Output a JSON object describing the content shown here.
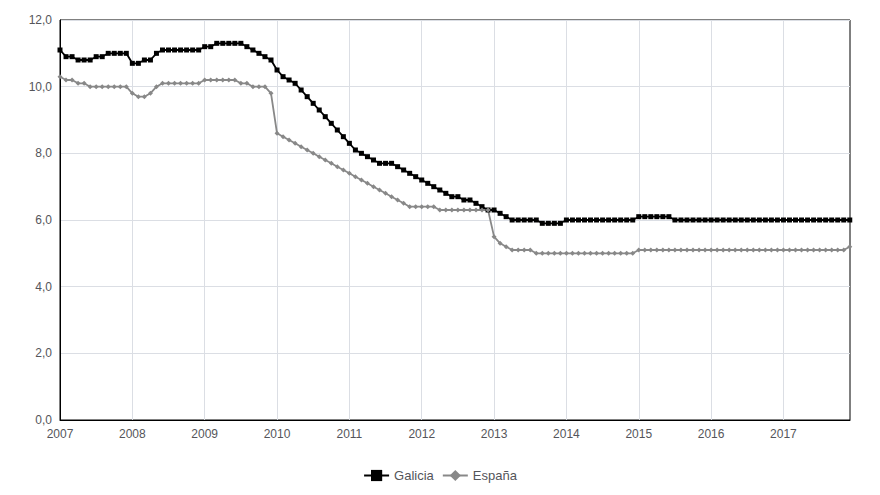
{
  "chart_data": {
    "type": "line",
    "x": [
      2007,
      2007.0833333333333,
      2007.1666666666667,
      2007.25,
      2007.3333333333333,
      2007.4166666666667,
      2007.5,
      2007.5833333333333,
      2007.6666666666667,
      2007.75,
      2007.8333333333333,
      2007.9166666666667,
      2008,
      2008.0833333333333,
      2008.1666666666667,
      2008.25,
      2008.3333333333333,
      2008.4166666666667,
      2008.5,
      2008.5833333333333,
      2008.6666666666667,
      2008.75,
      2008.8333333333333,
      2008.9166666666667,
      2009,
      2009.0833333333333,
      2009.1666666666667,
      2009.25,
      2009.3333333333333,
      2009.4166666666667,
      2009.5,
      2009.5833333333333,
      2009.6666666666667,
      2009.75,
      2009.8333333333333,
      2009.9166666666667,
      2010,
      2010.0833333333333,
      2010.1666666666667,
      2010.25,
      2010.3333333333333,
      2010.4166666666667,
      2010.5,
      2010.5833333333333,
      2010.6666666666667,
      2010.75,
      2010.8333333333333,
      2010.9166666666667,
      2011,
      2011.0833333333333,
      2011.1666666666667,
      2011.25,
      2011.3333333333333,
      2011.4166666666667,
      2011.5,
      2011.5833333333333,
      2011.6666666666667,
      2011.75,
      2011.8333333333333,
      2011.9166666666667,
      2012,
      2012.0833333333333,
      2012.1666666666667,
      2012.25,
      2012.3333333333333,
      2012.4166666666667,
      2012.5,
      2012.5833333333333,
      2012.6666666666667,
      2012.75,
      2012.8333333333333,
      2012.9166666666667,
      2013,
      2013.0833333333333,
      2013.1666666666667,
      2013.25,
      2013.3333333333333,
      2013.4166666666667,
      2013.5,
      2013.5833333333333,
      2013.6666666666667,
      2013.75,
      2013.8333333333333,
      2013.9166666666667,
      2014,
      2014.0833333333333,
      2014.1666666666667,
      2014.25,
      2014.3333333333333,
      2014.4166666666667,
      2014.5,
      2014.5833333333333,
      2014.6666666666667,
      2014.75,
      2014.8333333333333,
      2014.9166666666667,
      2015,
      2015.0833333333333,
      2015.1666666666667,
      2015.25,
      2015.3333333333333,
      2015.4166666666667,
      2015.5,
      2015.5833333333333,
      2015.6666666666667,
      2015.75,
      2015.8333333333333,
      2015.9166666666667,
      2016,
      2016.0833333333333,
      2016.1666666666667,
      2016.25,
      2016.3333333333333,
      2016.4166666666667,
      2016.5,
      2016.5833333333333,
      2016.6666666666667,
      2016.75,
      2016.8333333333333,
      2016.9166666666667,
      2017,
      2017.0833333333333,
      2017.1666666666667,
      2017.25,
      2017.3333333333333,
      2017.4166666666667,
      2017.5,
      2017.5833333333333,
      2017.6666666666667,
      2017.75,
      2017.8333333333333,
      2017.9166666666667
    ],
    "series": [
      {
        "name": "Galicia",
        "color": "#000000",
        "marker": "square",
        "values": [
          11.1,
          10.9,
          10.9,
          10.8,
          10.8,
          10.8,
          10.9,
          10.9,
          11.0,
          11.0,
          11.0,
          11.0,
          10.7,
          10.7,
          10.8,
          10.8,
          11.0,
          11.1,
          11.1,
          11.1,
          11.1,
          11.1,
          11.1,
          11.1,
          11.2,
          11.2,
          11.3,
          11.3,
          11.3,
          11.3,
          11.3,
          11.2,
          11.1,
          11.0,
          10.9,
          10.8,
          10.5,
          10.3,
          10.2,
          10.1,
          9.9,
          9.7,
          9.5,
          9.3,
          9.1,
          8.9,
          8.7,
          8.5,
          8.3,
          8.1,
          8.0,
          7.9,
          7.8,
          7.7,
          7.7,
          7.7,
          7.6,
          7.5,
          7.4,
          7.3,
          7.2,
          7.1,
          7.0,
          6.9,
          6.8,
          6.7,
          6.7,
          6.6,
          6.6,
          6.5,
          6.4,
          6.3,
          6.3,
          6.2,
          6.1,
          6.0,
          6.0,
          6.0,
          6.0,
          6.0,
          5.9,
          5.9,
          5.9,
          5.9,
          6.0,
          6.0,
          6.0,
          6.0,
          6.0,
          6.0,
          6.0,
          6.0,
          6.0,
          6.0,
          6.0,
          6.0,
          6.1,
          6.1,
          6.1,
          6.1,
          6.1,
          6.1,
          6.0,
          6.0,
          6.0,
          6.0,
          6.0,
          6.0,
          6.0,
          6.0,
          6.0,
          6.0,
          6.0,
          6.0,
          6.0,
          6.0,
          6.0,
          6.0,
          6.0,
          6.0,
          6.0,
          6.0,
          6.0,
          6.0,
          6.0,
          6.0,
          6.0,
          6.0,
          6.0,
          6.0,
          6.0,
          6.0
        ]
      },
      {
        "name": "España",
        "color": "#888888",
        "marker": "diamond",
        "values": [
          10.3,
          10.2,
          10.2,
          10.1,
          10.1,
          10.0,
          10.0,
          10.0,
          10.0,
          10.0,
          10.0,
          10.0,
          9.8,
          9.7,
          9.7,
          9.8,
          10.0,
          10.1,
          10.1,
          10.1,
          10.1,
          10.1,
          10.1,
          10.1,
          10.2,
          10.2,
          10.2,
          10.2,
          10.2,
          10.2,
          10.1,
          10.1,
          10.0,
          10.0,
          10.0,
          9.8,
          8.6,
          8.5,
          8.4,
          8.3,
          8.2,
          8.1,
          8.0,
          7.9,
          7.8,
          7.7,
          7.6,
          7.5,
          7.4,
          7.3,
          7.2,
          7.1,
          7.0,
          6.9,
          6.8,
          6.7,
          6.6,
          6.5,
          6.4,
          6.4,
          6.4,
          6.4,
          6.4,
          6.3,
          6.3,
          6.3,
          6.3,
          6.3,
          6.3,
          6.3,
          6.3,
          6.3,
          5.5,
          5.3,
          5.2,
          5.1,
          5.1,
          5.1,
          5.1,
          5.0,
          5.0,
          5.0,
          5.0,
          5.0,
          5.0,
          5.0,
          5.0,
          5.0,
          5.0,
          5.0,
          5.0,
          5.0,
          5.0,
          5.0,
          5.0,
          5.0,
          5.1,
          5.1,
          5.1,
          5.1,
          5.1,
          5.1,
          5.1,
          5.1,
          5.1,
          5.1,
          5.1,
          5.1,
          5.1,
          5.1,
          5.1,
          5.1,
          5.1,
          5.1,
          5.1,
          5.1,
          5.1,
          5.1,
          5.1,
          5.1,
          5.1,
          5.1,
          5.1,
          5.1,
          5.1,
          5.1,
          5.1,
          5.1,
          5.1,
          5.1,
          5.1,
          5.2
        ]
      }
    ],
    "xlim": [
      2007,
      2017.92
    ],
    "xticks": [
      2007,
      2008,
      2009,
      2010,
      2011,
      2012,
      2013,
      2014,
      2015,
      2016,
      2017
    ],
    "ylim": [
      0.0,
      12.0
    ],
    "yticks": [
      {
        "value": 0.0,
        "label": "0,0"
      },
      {
        "value": 2.0,
        "label": "2,0"
      },
      {
        "value": 4.0,
        "label": "4,0"
      },
      {
        "value": 6.0,
        "label": "6,0"
      },
      {
        "value": 8.0,
        "label": "8,0"
      },
      {
        "value": 10.0,
        "label": "10,0"
      },
      {
        "value": 12.0,
        "label": "12,0"
      }
    ],
    "grid": true,
    "legend": "bottom"
  }
}
